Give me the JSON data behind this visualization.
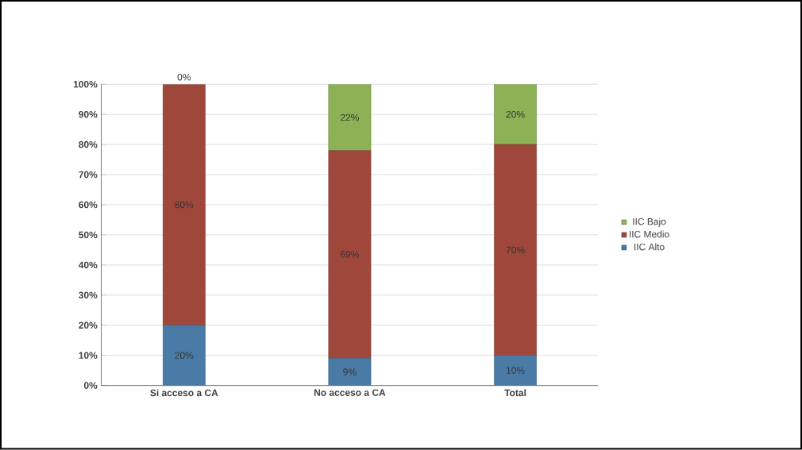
{
  "chart_data": {
    "type": "bar",
    "stacked": true,
    "categories": [
      "Si acceso a CA",
      "No acceso a CA",
      "Total"
    ],
    "series": [
      {
        "name": "IIC Alto",
        "color": "#4a7ba7",
        "values": [
          20,
          9,
          10
        ],
        "value_labels": [
          "20%",
          "9%",
          "10%"
        ]
      },
      {
        "name": "IIC Medio",
        "color": "#a0473c",
        "values": [
          80,
          69,
          70
        ],
        "value_labels": [
          "80%",
          "69%",
          "70%"
        ]
      },
      {
        "name": "IIC Bajo",
        "color": "#8db255",
        "values": [
          0,
          22,
          20
        ],
        "value_labels": [
          "0%",
          "22%",
          "20%"
        ]
      }
    ],
    "ylim": [
      0,
      100
    ],
    "yticks": [
      {
        "value": 0,
        "label": "0%"
      },
      {
        "value": 10,
        "label": "10%"
      },
      {
        "value": 20,
        "label": "20%"
      },
      {
        "value": 30,
        "label": "30%"
      },
      {
        "value": 40,
        "label": "40%"
      },
      {
        "value": 50,
        "label": "50%"
      },
      {
        "value": 60,
        "label": "60%"
      },
      {
        "value": 70,
        "label": "70%"
      },
      {
        "value": 80,
        "label": "80%"
      },
      {
        "value": 90,
        "label": "90%"
      },
      {
        "value": 100,
        "label": "100%"
      }
    ],
    "grid": "y",
    "legend": "right"
  }
}
